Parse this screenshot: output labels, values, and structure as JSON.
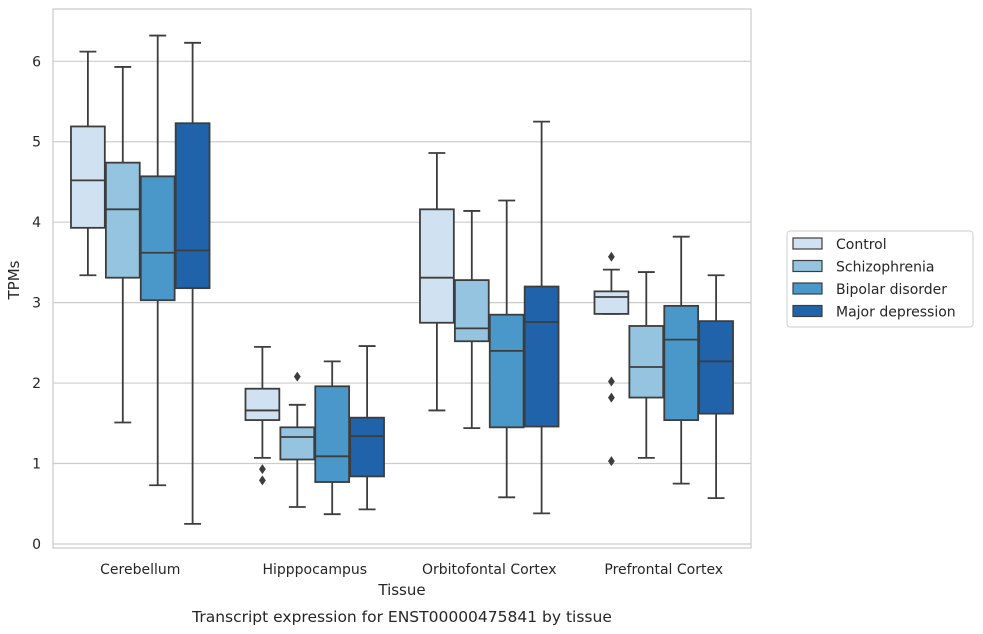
{
  "caption": "Transcript expression for ENST00000475841 by tissue",
  "chart_data": {
    "type": "box",
    "xlabel": "Tissue",
    "ylabel": "TPMs",
    "ylim": [
      -0.05,
      6.65
    ],
    "yticks": [
      0,
      1,
      2,
      3,
      4,
      5,
      6
    ],
    "grid": "horizontal",
    "legend_position": "right",
    "categories": [
      "Cerebellum",
      "Hipppocampus",
      "Orbitofontal Cortex",
      "Prefrontal Cortex"
    ],
    "series": [
      {
        "name": "Control",
        "color": "#d0e1f2",
        "boxes": [
          {
            "whislo": 3.34,
            "q1": 3.93,
            "med": 4.52,
            "q3": 5.19,
            "whishi": 6.12,
            "fliers": []
          },
          {
            "whislo": 1.07,
            "q1": 1.54,
            "med": 1.66,
            "q3": 1.93,
            "whishi": 2.45,
            "fliers": [
              0.93,
              0.79
            ]
          },
          {
            "whislo": 1.66,
            "q1": 2.75,
            "med": 3.31,
            "q3": 4.16,
            "whishi": 4.86,
            "fliers": []
          },
          {
            "whislo": 2.86,
            "q1": 2.86,
            "med": 3.07,
            "q3": 3.14,
            "whishi": 3.41,
            "fliers": [
              3.57,
              2.02,
              1.82,
              1.03
            ]
          }
        ]
      },
      {
        "name": "Schizophrenia",
        "color": "#94c4df",
        "boxes": [
          {
            "whislo": 1.51,
            "q1": 3.31,
            "med": 4.16,
            "q3": 4.74,
            "whishi": 5.93,
            "fliers": []
          },
          {
            "whislo": 0.46,
            "q1": 1.05,
            "med": 1.33,
            "q3": 1.45,
            "whishi": 1.73,
            "fliers": [
              2.08
            ]
          },
          {
            "whislo": 1.44,
            "q1": 2.52,
            "med": 2.68,
            "q3": 3.28,
            "whishi": 4.14,
            "fliers": []
          },
          {
            "whislo": 1.07,
            "q1": 1.82,
            "med": 2.2,
            "q3": 2.71,
            "whishi": 3.38,
            "fliers": []
          }
        ]
      },
      {
        "name": "Bipolar disorder",
        "color": "#4a98c9",
        "boxes": [
          {
            "whislo": 0.73,
            "q1": 3.03,
            "med": 3.62,
            "q3": 4.57,
            "whishi": 6.32,
            "fliers": []
          },
          {
            "whislo": 0.37,
            "q1": 0.77,
            "med": 1.09,
            "q3": 1.96,
            "whishi": 2.27,
            "fliers": []
          },
          {
            "whislo": 0.58,
            "q1": 1.45,
            "med": 2.4,
            "q3": 2.85,
            "whishi": 4.27,
            "fliers": []
          },
          {
            "whislo": 0.75,
            "q1": 1.54,
            "med": 2.54,
            "q3": 2.96,
            "whishi": 3.82,
            "fliers": []
          }
        ]
      },
      {
        "name": "Major depression",
        "color": "#2163aa",
        "boxes": [
          {
            "whislo": 0.25,
            "q1": 3.18,
            "med": 3.65,
            "q3": 5.23,
            "whishi": 6.23,
            "fliers": []
          },
          {
            "whislo": 0.43,
            "q1": 0.84,
            "med": 1.34,
            "q3": 1.57,
            "whishi": 2.46,
            "fliers": []
          },
          {
            "whislo": 0.38,
            "q1": 1.46,
            "med": 2.76,
            "q3": 3.2,
            "whishi": 5.25,
            "fliers": []
          },
          {
            "whislo": 0.57,
            "q1": 1.62,
            "med": 2.27,
            "q3": 2.77,
            "whishi": 3.34,
            "fliers": []
          }
        ]
      }
    ]
  }
}
